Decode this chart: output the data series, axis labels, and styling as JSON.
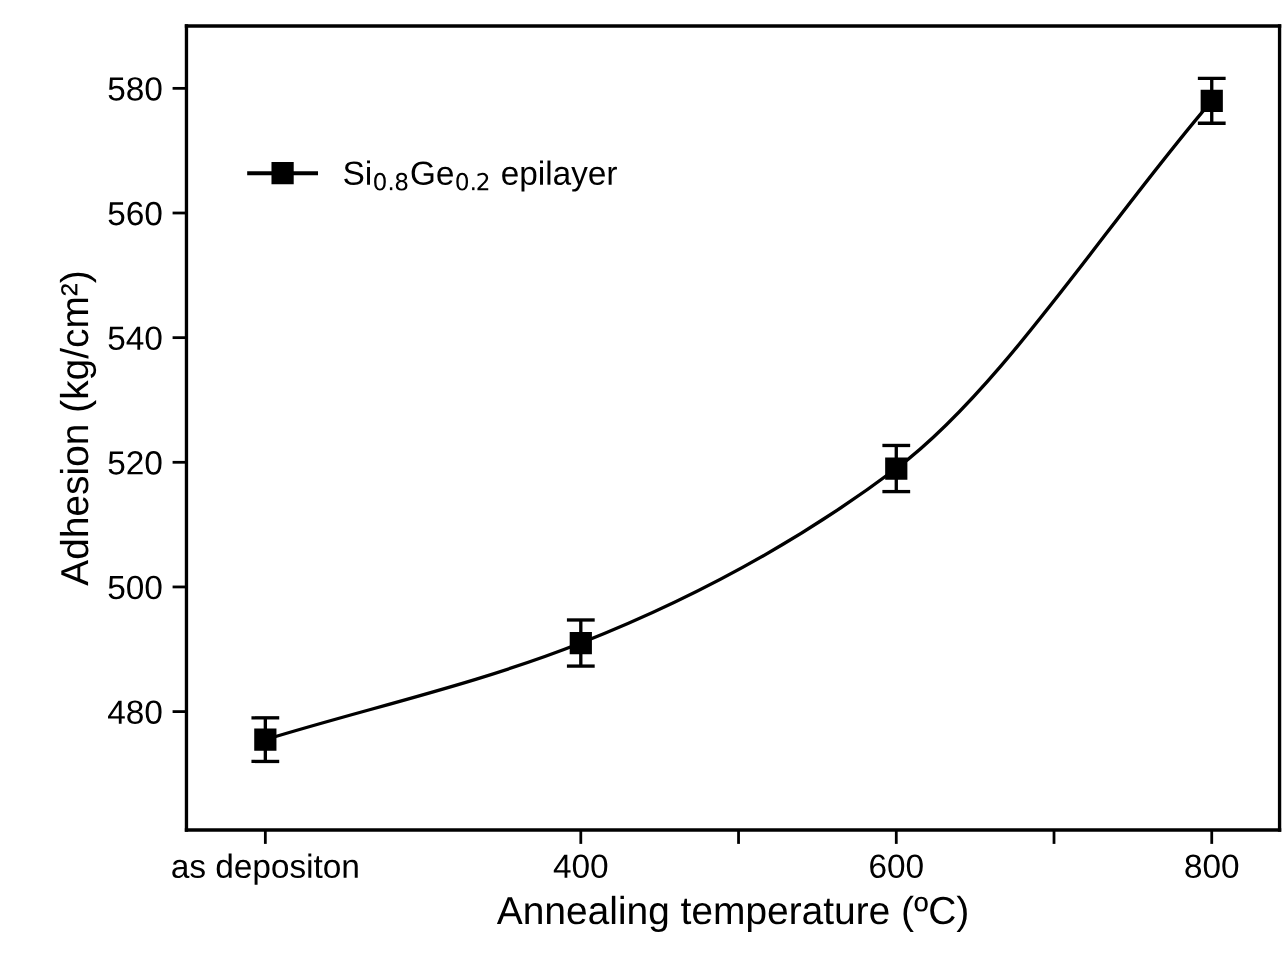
{
  "chart_data": {
    "type": "line",
    "xlabel": "Annealing temperature (ºC)",
    "ylabel": "Adhesion (kg/cm²)",
    "x": [
      200,
      400,
      600,
      800
    ],
    "series": [
      {
        "name": "Si$_{0.8}$Ge$_{0.2}$ epilayer",
        "color": "#000000",
        "values": [
          475.5,
          491,
          519,
          578
        ],
        "errors": [
          3.5,
          3.7,
          3.7,
          3.6
        ]
      }
    ],
    "xlim": [
      150,
      843
    ],
    "ylim": [
      461,
      590
    ],
    "xticks": [
      {
        "value": 200,
        "label": "as depositon"
      },
      400,
      {
        "value": 500,
        "label": null
      },
      600,
      {
        "value": 700,
        "label": null
      },
      800
    ],
    "yticks": [
      480,
      500,
      520,
      540,
      560,
      580
    ],
    "marker": "square",
    "line_style": "solid",
    "legend": "top left",
    "grid": false
  }
}
